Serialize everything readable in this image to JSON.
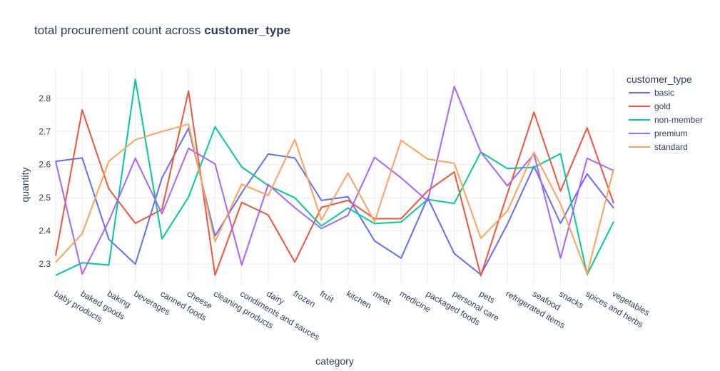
{
  "title": {
    "prefix": "total procurement count across ",
    "bold": "customer_type"
  },
  "colors": {
    "basic": "#636efa",
    "gold": "#ef553b",
    "non-member": "#00cc96",
    "premium": "#ab63fa",
    "standard": "#ffa15a"
  },
  "chart_data": {
    "type": "line",
    "title": "total procurement count across customer_type",
    "xlabel": "category",
    "ylabel": "quantity",
    "ylim": [
      2.24,
      2.89
    ],
    "yticks": [
      2.3,
      2.4,
      2.5,
      2.6,
      2.7,
      2.8
    ],
    "grid": true,
    "legend_title": "customer_type",
    "legend_position": "top-right",
    "categories": [
      "baby products",
      "baked goods",
      "baking",
      "beverages",
      "canned foods",
      "cheese",
      "cleaning products",
      "condiments and sauces",
      "dairy",
      "frozen",
      "fruit",
      "kitchen",
      "meat",
      "medicine",
      "packaged foods",
      "personal care",
      "pets",
      "refrigerated items",
      "seafood",
      "snacks",
      "spices and herbs",
      "vegetables"
    ],
    "series": [
      {
        "name": "basic",
        "color": "#636efa",
        "values": [
          2.61,
          2.62,
          2.375,
          2.3,
          2.56,
          2.71,
          2.385,
          2.515,
          2.632,
          2.62,
          2.492,
          2.503,
          2.37,
          2.318,
          2.5,
          2.332,
          2.268,
          2.42,
          2.595,
          2.423,
          2.572,
          2.469
        ]
      },
      {
        "name": "gold",
        "color": "#ef553b",
        "values": [
          2.325,
          2.765,
          2.527,
          2.423,
          2.465,
          2.822,
          2.267,
          2.486,
          2.448,
          2.306,
          2.471,
          2.492,
          2.437,
          2.437,
          2.521,
          2.578,
          2.265,
          2.512,
          2.758,
          2.52,
          2.711,
          2.483
        ]
      },
      {
        "name": "non-member",
        "color": "#00cc96",
        "values": [
          2.266,
          2.304,
          2.297,
          2.857,
          2.376,
          2.502,
          2.714,
          2.593,
          2.537,
          2.5,
          2.415,
          2.469,
          2.422,
          2.427,
          2.495,
          2.483,
          2.638,
          2.588,
          2.592,
          2.633,
          2.268,
          2.428
        ]
      },
      {
        "name": "premium",
        "color": "#ab63fa",
        "values": [
          2.61,
          2.27,
          2.43,
          2.619,
          2.452,
          2.649,
          2.602,
          2.297,
          2.54,
          2.47,
          2.407,
          2.447,
          2.622,
          2.56,
          2.49,
          2.836,
          2.638,
          2.536,
          2.632,
          2.318,
          2.619,
          2.582
        ]
      },
      {
        "name": "standard",
        "color": "#ffa15a",
        "values": [
          2.305,
          2.392,
          2.61,
          2.675,
          2.7,
          2.722,
          2.368,
          2.541,
          2.507,
          2.676,
          2.433,
          2.575,
          2.428,
          2.673,
          2.617,
          2.604,
          2.378,
          2.46,
          2.637,
          2.481,
          2.27,
          2.587
        ]
      }
    ]
  }
}
